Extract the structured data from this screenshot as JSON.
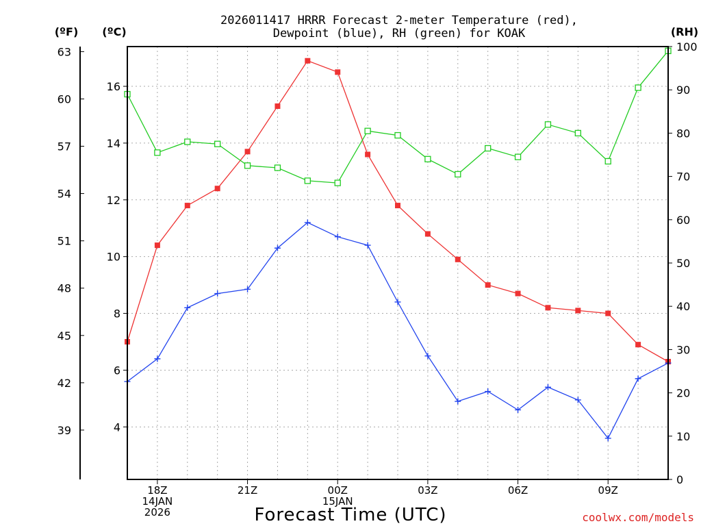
{
  "chart_data": {
    "type": "line",
    "title_lines": [
      "2026011417 HRRR Forecast 2-meter Temperature (red),",
      "Dewpoint (blue), RH (green) for KOAK"
    ],
    "unit_labels": {
      "fahrenheit": "(ºF)",
      "celsius": "(ºC)",
      "rh": "(RH)"
    },
    "xlabel": "Forecast Time (UTC)",
    "credit": "coolwx.com/models",
    "x_hours": [
      17,
      18,
      19,
      20,
      21,
      22,
      23,
      24,
      25,
      26,
      27,
      28,
      29,
      30,
      31,
      32,
      33,
      34,
      35
    ],
    "xlim": [
      17,
      35
    ],
    "x_ticks": [
      {
        "hour": 18,
        "lines": [
          "18Z",
          "14JAN",
          "2026"
        ]
      },
      {
        "hour": 21,
        "lines": [
          "21Z"
        ]
      },
      {
        "hour": 24,
        "lines": [
          "00Z",
          "15JAN"
        ]
      },
      {
        "hour": 27,
        "lines": [
          "03Z"
        ]
      },
      {
        "hour": 30,
        "lines": [
          "06Z"
        ]
      },
      {
        "hour": 33,
        "lines": [
          "09Z"
        ]
      }
    ],
    "celsius_axis": {
      "ylim": [
        2.15,
        17.4
      ],
      "ticks": [
        4,
        6,
        8,
        10,
        12,
        14,
        16
      ]
    },
    "fahrenheit_axis": {
      "ticks": [
        39,
        42,
        45,
        48,
        51,
        54,
        57,
        60,
        63
      ]
    },
    "rh_axis": {
      "ylim": [
        0,
        100
      ],
      "ticks": [
        0,
        10,
        20,
        30,
        40,
        50,
        60,
        70,
        80,
        90,
        100
      ]
    },
    "series": [
      {
        "name": "2-meter Temperature",
        "axis": "celsius",
        "color": "#ee3333",
        "marker": "filled-square",
        "values": [
          7.0,
          10.4,
          11.8,
          12.4,
          13.7,
          15.3,
          16.9,
          16.5,
          13.6,
          11.8,
          10.8,
          9.9,
          9.0,
          8.7,
          8.2,
          8.1,
          8.0,
          6.9,
          6.3
        ]
      },
      {
        "name": "Dewpoint",
        "axis": "celsius",
        "color": "#2244ee",
        "marker": "plus",
        "values": [
          5.6,
          6.4,
          8.2,
          8.7,
          8.85,
          10.3,
          11.2,
          10.7,
          10.4,
          8.4,
          6.5,
          4.9,
          5.25,
          4.6,
          5.4,
          4.95,
          3.6,
          5.7,
          6.25
        ]
      },
      {
        "name": "Relative Humidity",
        "axis": "rh",
        "color": "#22cc22",
        "marker": "open-square",
        "values": [
          89,
          75.5,
          78,
          77.5,
          72.5,
          72,
          69,
          68.5,
          80.5,
          79.5,
          74,
          70.5,
          76.5,
          74.5,
          82,
          80,
          73.5,
          90.5,
          99
        ]
      }
    ]
  }
}
